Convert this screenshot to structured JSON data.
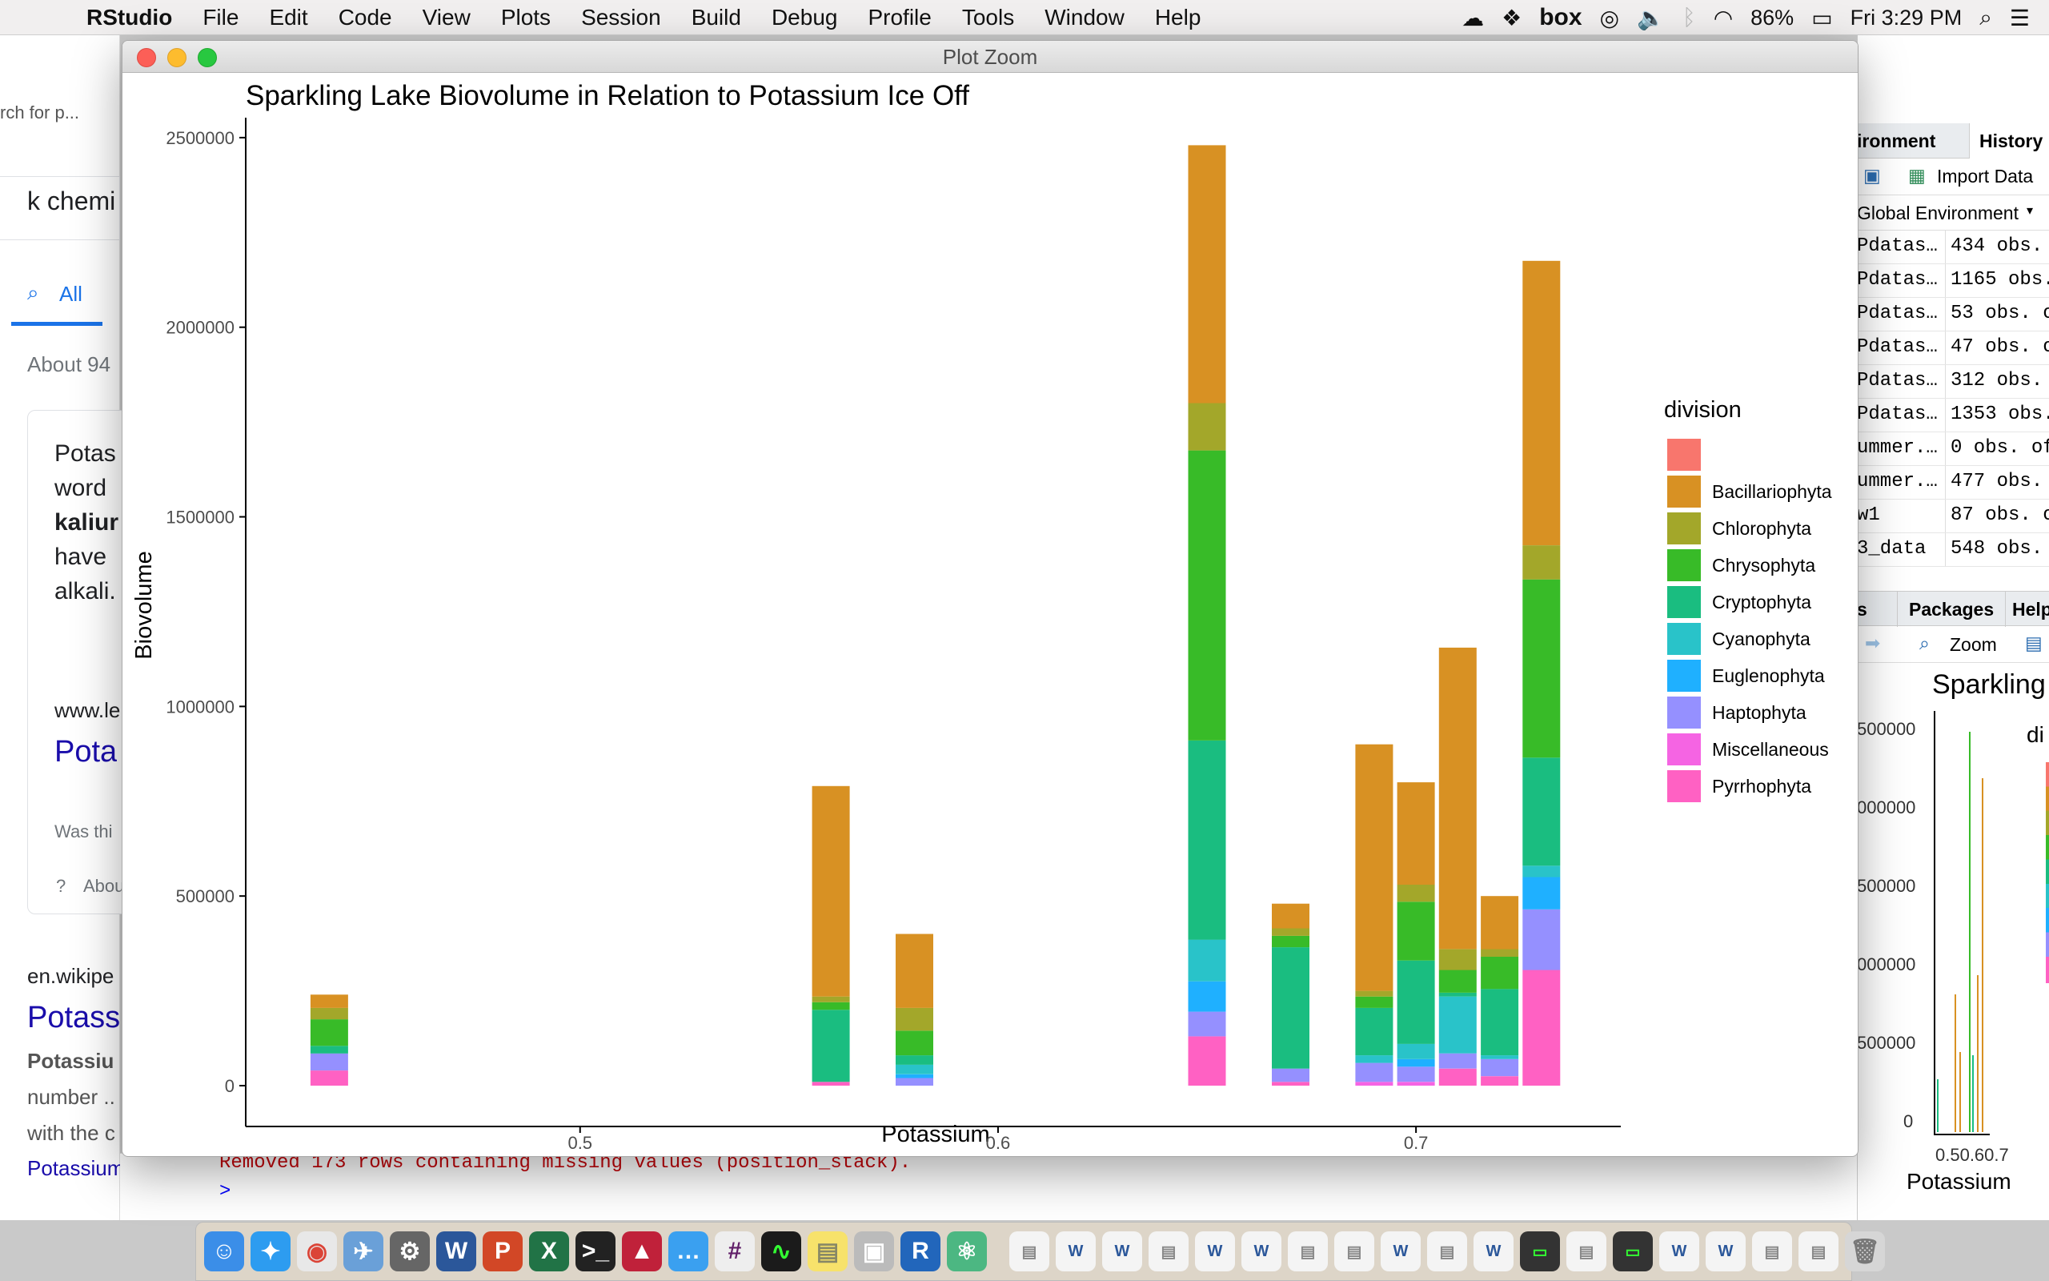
{
  "menubar": {
    "apple_glyph": "",
    "app_name": "RStudio",
    "items": [
      "File",
      "Edit",
      "Code",
      "View",
      "Plots",
      "Session",
      "Build",
      "Debug",
      "Profile",
      "Tools",
      "Window",
      "Help"
    ],
    "box_label": "box",
    "battery": "86%",
    "clock": "Fri 3:29 PM"
  },
  "browser": {
    "search_snippet": "rch for p...",
    "query": "k chemi",
    "tab_all": "All",
    "about": "About 94",
    "card_lines": [
      "Potas",
      "word",
      "kaliur",
      "have",
      "alkali."
    ],
    "site": "www.le",
    "link_title": "Pota",
    "was_this": "Was thi",
    "about_link": "Abou",
    "wiki_site": "en.wikipe",
    "wiki_title": "Potass",
    "wiki_bold": "Potassiu",
    "wiki_line2": "number ..",
    "wiki_line3": "with the c",
    "wiki_link": "Potassium in biol"
  },
  "console": {
    "warning_fragment": "Removed 173 rows containing missing values (position_stack).",
    "prompt": ">"
  },
  "env_pane": {
    "tabs": [
      "ironment",
      "History"
    ],
    "import_label": "Import Data",
    "global_env": "Global Environment",
    "rows": [
      {
        "name": "Pdatas…",
        "value": "434 obs."
      },
      {
        "name": "Pdatas…",
        "value": "1165 obs."
      },
      {
        "name": "Pdatas…",
        "value": "53 obs. o"
      },
      {
        "name": "Pdatas…",
        "value": "47 obs. o"
      },
      {
        "name": "Pdatas…",
        "value": "312 obs."
      },
      {
        "name": "Pdatas…",
        "value": "1353 obs."
      },
      {
        "name": "ummer.…",
        "value": "0 obs. of"
      },
      {
        "name": "ummer.…",
        "value": "477 obs."
      },
      {
        "name": "w1",
        "value": "87 obs. o"
      },
      {
        "name": "3_data",
        "value": "548 obs."
      }
    ]
  },
  "files_pane": {
    "tabs": [
      "s",
      "Packages",
      "Help"
    ],
    "zoom_label": "Zoom",
    "mini_title": "Sparkling",
    "mini_legend": "di",
    "mini_yticks": [
      "500000",
      "000000",
      "500000",
      "000000",
      "500000",
      "0"
    ],
    "mini_xticks": "0.50.60.7",
    "mini_xlabel": "Potassium"
  },
  "window": {
    "title": "Plot Zoom"
  },
  "colors": {
    "Pyrrhophyta": "#FF61C3",
    "Miscellaneous": "#F564E3",
    "Haptophyta": "#9590FF",
    "Euglenophyta": "#1FB0FF",
    "Cyanophyta": "#29C3C9",
    "Cryptophyta": "#1ABD80",
    "Chrysophyta": "#38BB28",
    "Chlorophyta": "#A3A72A",
    "Bacillariophyta": "#D89123",
    "NA": "#F8766D"
  },
  "chart_data": {
    "type": "bar",
    "stacked": true,
    "title": "Sparkling Lake Biovolume in Relation to Potassium Ice Off",
    "xlabel": "Potassium",
    "ylabel": "Biovolume",
    "xlim": [
      0.42,
      0.749
    ],
    "ylim": [
      0,
      2580000
    ],
    "x_ticks": [
      "0.5",
      "0.6",
      "0.7"
    ],
    "y_ticks": [
      "0",
      "500000",
      "1000000",
      "1500000",
      "2000000",
      "2500000"
    ],
    "legend_title": "division",
    "legend_position": "right",
    "legend_entries": [
      "",
      "Bacillariophyta",
      "Chlorophyta",
      "Chrysophyta",
      "Cryptophyta",
      "Cyanophyta",
      "Euglenophyta",
      "Haptophyta",
      "Miscellaneous",
      "Pyrrhophyta"
    ],
    "stack_order": [
      "Pyrrhophyta",
      "Miscellaneous",
      "Haptophyta",
      "Euglenophyta",
      "Cyanophyta",
      "Cryptophyta",
      "Chrysophyta",
      "Chlorophyta",
      "Bacillariophyta"
    ],
    "bars": [
      {
        "x": 0.44,
        "segments": {
          "Pyrrhophyta": 40000,
          "Haptophyta": 45000,
          "Cryptophyta": 20000,
          "Chrysophyta": 70000,
          "Chlorophyta": 30000,
          "Bacillariophyta": 35000
        }
      },
      {
        "x": 0.56,
        "segments": {
          "Pyrrhophyta": 10000,
          "Cryptophyta": 190000,
          "Chrysophyta": 20000,
          "Chlorophyta": 15000,
          "Bacillariophyta": 555000
        }
      },
      {
        "x": 0.58,
        "segments": {
          "Haptophyta": 20000,
          "Euglenophyta": 10000,
          "Cyanophyta": 25000,
          "Cryptophyta": 25000,
          "Chrysophyta": 65000,
          "Chlorophyta": 60000,
          "Bacillariophyta": 195000
        }
      },
      {
        "x": 0.65,
        "segments": {
          "Pyrrhophyta": 130000,
          "Haptophyta": 65000,
          "Euglenophyta": 80000,
          "Cyanophyta": 110000,
          "Cryptophyta": 525000,
          "Chrysophyta": 765000,
          "Chlorophyta": 125000,
          "Bacillariophyta": 680000
        }
      },
      {
        "x": 0.67,
        "segments": {
          "Pyrrhophyta": 10000,
          "Haptophyta": 35000,
          "Cryptophyta": 320000,
          "Chrysophyta": 30000,
          "Chlorophyta": 20000,
          "Bacillariophyta": 65000
        }
      },
      {
        "x": 0.69,
        "segments": {
          "Miscellaneous": 10000,
          "Haptophyta": 50000,
          "Cyanophyta": 20000,
          "Cryptophyta": 125000,
          "Chrysophyta": 30000,
          "Chlorophyta": 15000,
          "Bacillariophyta": 650000
        }
      },
      {
        "x": 0.7,
        "segments": {
          "Miscellaneous": 10000,
          "Haptophyta": 40000,
          "Euglenophyta": 20000,
          "Cyanophyta": 40000,
          "Cryptophyta": 220000,
          "Chrysophyta": 155000,
          "Chlorophyta": 45000,
          "Bacillariophyta": 270000
        }
      },
      {
        "x": 0.71,
        "segments": {
          "Pyrrhophyta": 45000,
          "Haptophyta": 40000,
          "Cyanophyta": 150000,
          "Cryptophyta": 10000,
          "Chrysophyta": 60000,
          "Chlorophyta": 55000,
          "Bacillariophyta": 795000
        }
      },
      {
        "x": 0.72,
        "segments": {
          "Pyrrhophyta": 25000,
          "Haptophyta": 45000,
          "Cyanophyta": 10000,
          "Cryptophyta": 175000,
          "Chrysophyta": 85000,
          "Chlorophyta": 20000,
          "Bacillariophyta": 140000
        }
      },
      {
        "x": 0.73,
        "segments": {
          "Pyrrhophyta": 305000,
          "Haptophyta": 160000,
          "Euglenophyta": 85000,
          "Cyanophyta": 30000,
          "Cryptophyta": 285000,
          "Chrysophyta": 470000,
          "Chlorophyta": 90000,
          "Bacillariophyta": 750000
        }
      }
    ]
  }
}
